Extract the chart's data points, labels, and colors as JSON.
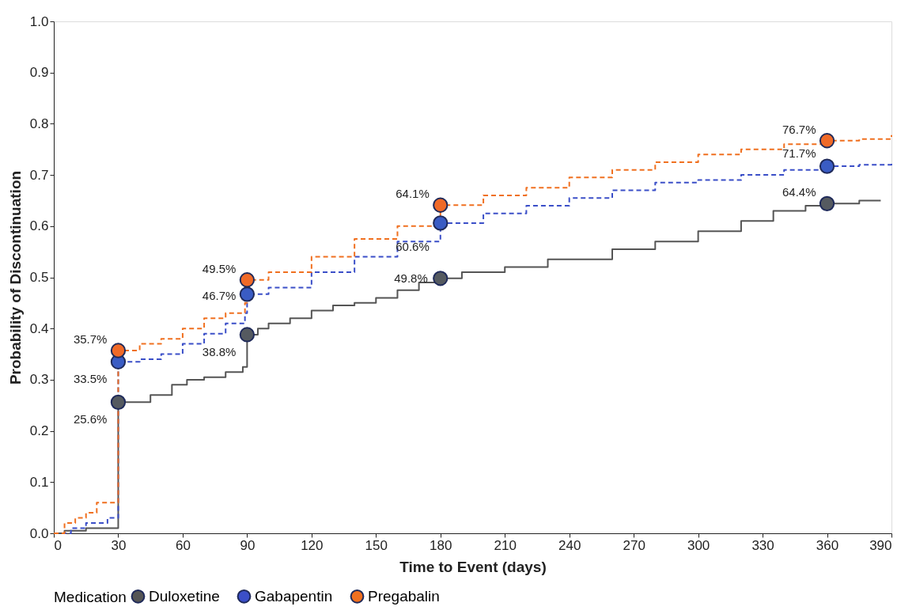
{
  "chart_data": {
    "type": "step",
    "xlabel": "Time to Event (days)",
    "ylabel": "Probability of Discontinuation",
    "legend_title": "Medication",
    "legend": "bottom",
    "grid": false,
    "xlim": [
      0,
      390
    ],
    "xticks": [
      0,
      30,
      60,
      90,
      120,
      150,
      180,
      210,
      240,
      270,
      300,
      330,
      360,
      390
    ],
    "ylim": [
      0,
      1.0
    ],
    "yticks": [
      {
        "value": 0,
        "label": "0.0"
      },
      0.1,
      0.2,
      0.3,
      0.4,
      0.5,
      0.6,
      0.7,
      0.8,
      0.9,
      {
        "value": 1,
        "label": "1.0"
      }
    ],
    "series": [
      {
        "name": "Duloxetine",
        "color": "#555555",
        "line_style": "solid",
        "x": [
          0,
          5,
          15,
          30,
          45,
          55,
          62,
          70,
          80,
          88,
          90,
          95,
          100,
          110,
          120,
          130,
          140,
          150,
          160,
          170,
          180,
          190,
          210,
          230,
          260,
          280,
          300,
          320,
          335,
          350,
          360,
          375,
          385
        ],
        "values": [
          0,
          0.005,
          0.01,
          0.256,
          0.27,
          0.29,
          0.3,
          0.305,
          0.315,
          0.325,
          0.388,
          0.4,
          0.41,
          0.42,
          0.435,
          0.445,
          0.45,
          0.46,
          0.475,
          0.49,
          0.498,
          0.51,
          0.52,
          0.535,
          0.555,
          0.57,
          0.59,
          0.61,
          0.63,
          0.64,
          0.644,
          0.65,
          0.65
        ]
      },
      {
        "name": "Gabapentin",
        "color": "#3b4fc8",
        "line_style": "dashed",
        "x": [
          0,
          8,
          15,
          25,
          30,
          40,
          50,
          60,
          70,
          80,
          89,
          90,
          100,
          120,
          140,
          160,
          180,
          200,
          220,
          240,
          260,
          280,
          300,
          320,
          340,
          360,
          375,
          390
        ],
        "values": [
          0,
          0.01,
          0.02,
          0.03,
          0.335,
          0.34,
          0.35,
          0.37,
          0.39,
          0.41,
          0.43,
          0.467,
          0.48,
          0.51,
          0.54,
          0.57,
          0.606,
          0.625,
          0.64,
          0.655,
          0.67,
          0.685,
          0.69,
          0.7,
          0.71,
          0.717,
          0.72,
          0.728
        ]
      },
      {
        "name": "Pregabalin",
        "color": "#f07020",
        "line_style": "dashed",
        "x": [
          0,
          5,
          10,
          15,
          20,
          30,
          40,
          50,
          60,
          70,
          80,
          89,
          90,
          100,
          120,
          140,
          160,
          180,
          200,
          220,
          240,
          260,
          280,
          300,
          320,
          340,
          360,
          375,
          390
        ],
        "values": [
          0,
          0.02,
          0.03,
          0.04,
          0.06,
          0.357,
          0.37,
          0.38,
          0.4,
          0.42,
          0.43,
          0.45,
          0.495,
          0.51,
          0.54,
          0.575,
          0.6,
          0.641,
          0.66,
          0.675,
          0.695,
          0.71,
          0.725,
          0.74,
          0.75,
          0.76,
          0.767,
          0.77,
          0.778
        ]
      },
      {
        "type": "scatter",
        "marker": "circle",
        "color": "#555a60",
        "x": [
          30,
          90,
          180,
          360
        ],
        "values": [
          0.256,
          0.388,
          0.498,
          0.644
        ],
        "value_labels": [
          "25.6%",
          "38.8%",
          "49.8%",
          "64.4%"
        ]
      },
      {
        "type": "scatter",
        "marker": "circle",
        "color": "#3a5cc4",
        "x": [
          30,
          90,
          180,
          360
        ],
        "values": [
          0.335,
          0.467,
          0.606,
          0.717
        ],
        "value_labels": [
          "33.5%",
          "46.7%",
          "60.6%",
          "71.7%"
        ]
      },
      {
        "type": "scatter",
        "marker": "circle",
        "color": "#f06a28",
        "x": [
          30,
          90,
          180,
          360
        ],
        "values": [
          0.357,
          0.495,
          0.641,
          0.767
        ],
        "value_labels": [
          "35.7%",
          "49.5%",
          "64.1%",
          "76.7%"
        ]
      }
    ]
  }
}
